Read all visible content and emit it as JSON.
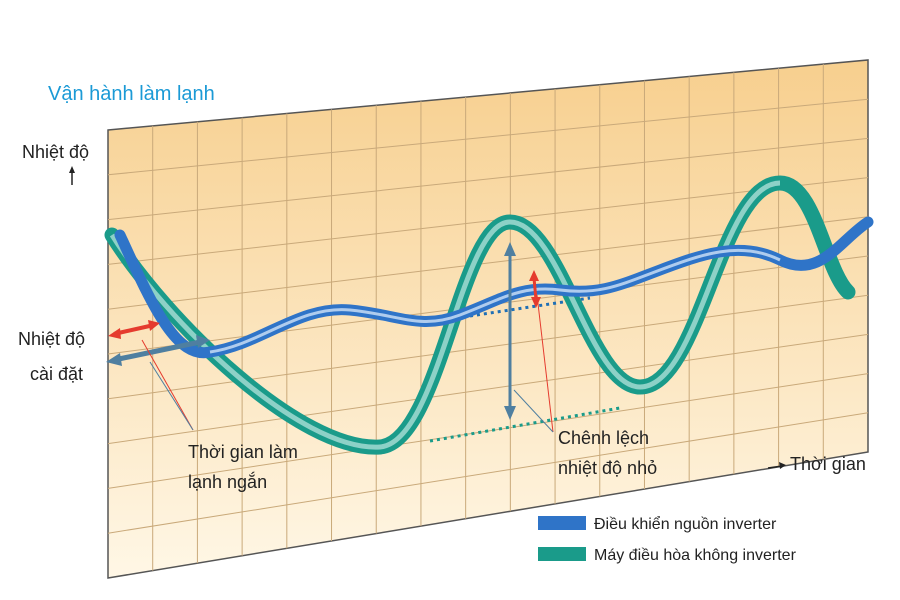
{
  "title": "Vận hành làm lạnh",
  "axis": {
    "y_label": "Nhiệt độ",
    "x_label": "Thời gian"
  },
  "labels": {
    "set_temp": [
      "Nhiệt độ",
      "cài đặt"
    ],
    "short_time": [
      "Thời gian làm",
      "lạnh ngắn"
    ],
    "small_diff": [
      "Chênh lệch",
      "nhiệt độ nhỏ"
    ]
  },
  "legend": [
    {
      "label": "Điều khiển nguồn inverter"
    },
    {
      "label": "Máy điều hòa không inverter"
    }
  ]
}
